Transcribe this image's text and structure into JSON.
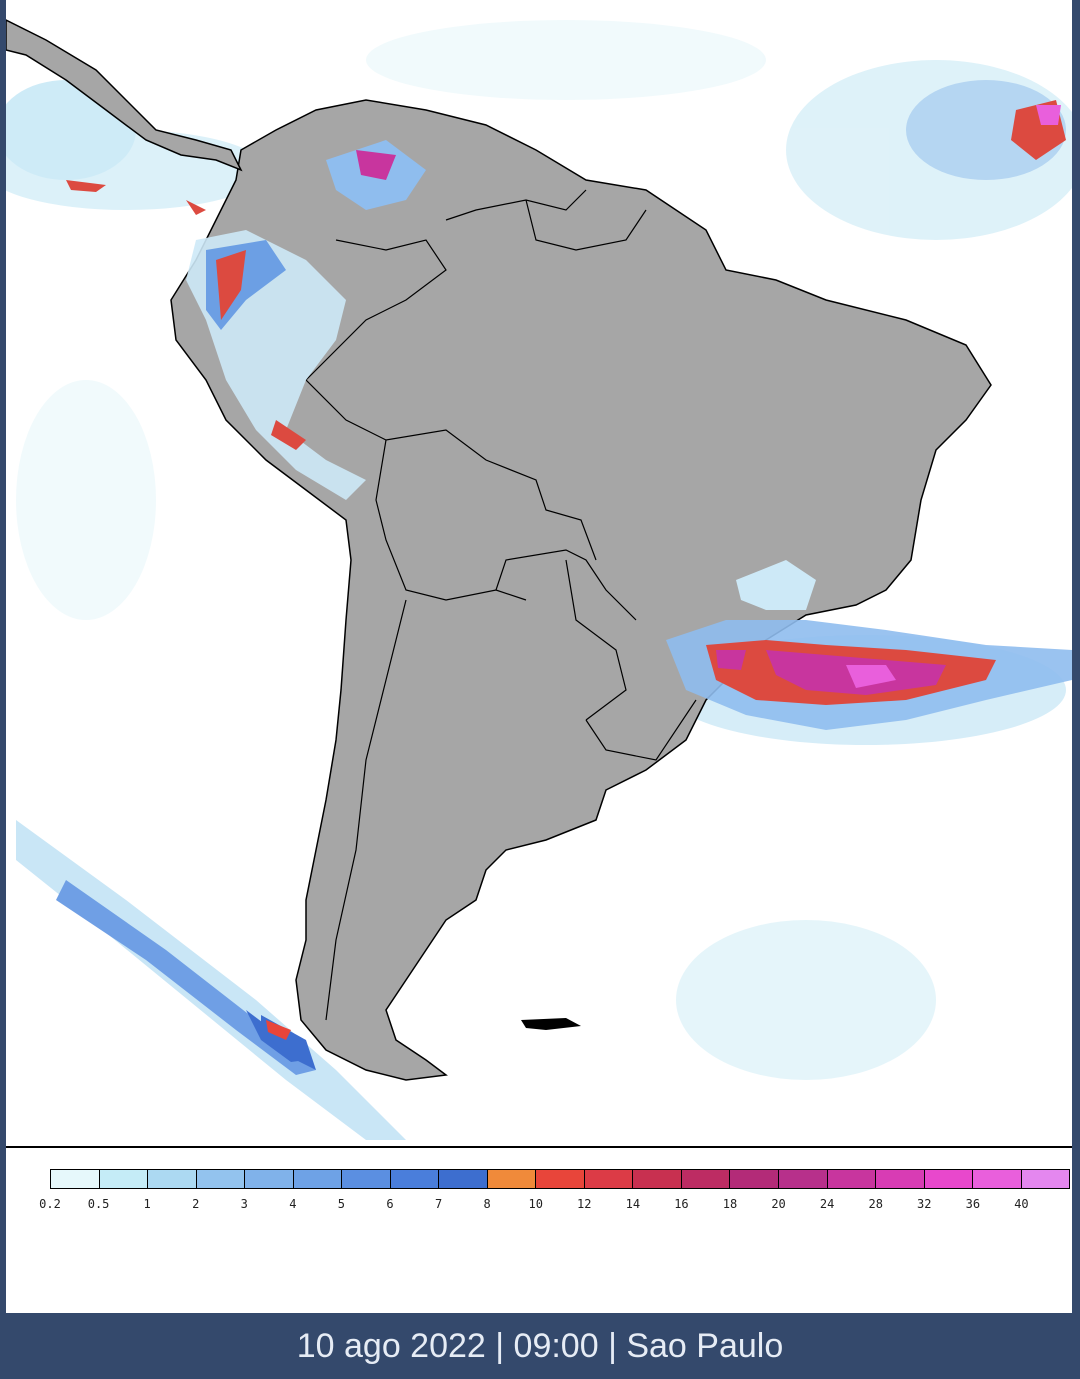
{
  "map": {
    "region": "South America",
    "land_color": "#a6a6a6",
    "ocean_color": "#ffffff",
    "border_color": "#000000"
  },
  "legend": {
    "labels": [
      "0.2",
      "0.5",
      "1",
      "2",
      "3",
      "4",
      "5",
      "6",
      "7",
      "8",
      "10",
      "12",
      "14",
      "16",
      "18",
      "20",
      "24",
      "28",
      "32",
      "36",
      "40"
    ],
    "colors": [
      "#e6f8fb",
      "#c5ecf7",
      "#acd9f2",
      "#93c3ee",
      "#80b2ea",
      "#6ea2e6",
      "#5b8fe1",
      "#4a7edb",
      "#3d6ecf",
      "#f08a3a",
      "#e8453a",
      "#dc3b46",
      "#c83050",
      "#bd2c63",
      "#b32b78",
      "#b7308b",
      "#c8359e",
      "#d83cb4",
      "#e848cc",
      "#e95fdc",
      "#e487ef"
    ]
  },
  "footer": {
    "caption": "10 ago 2022 | 09:00 | Sao Paulo"
  }
}
